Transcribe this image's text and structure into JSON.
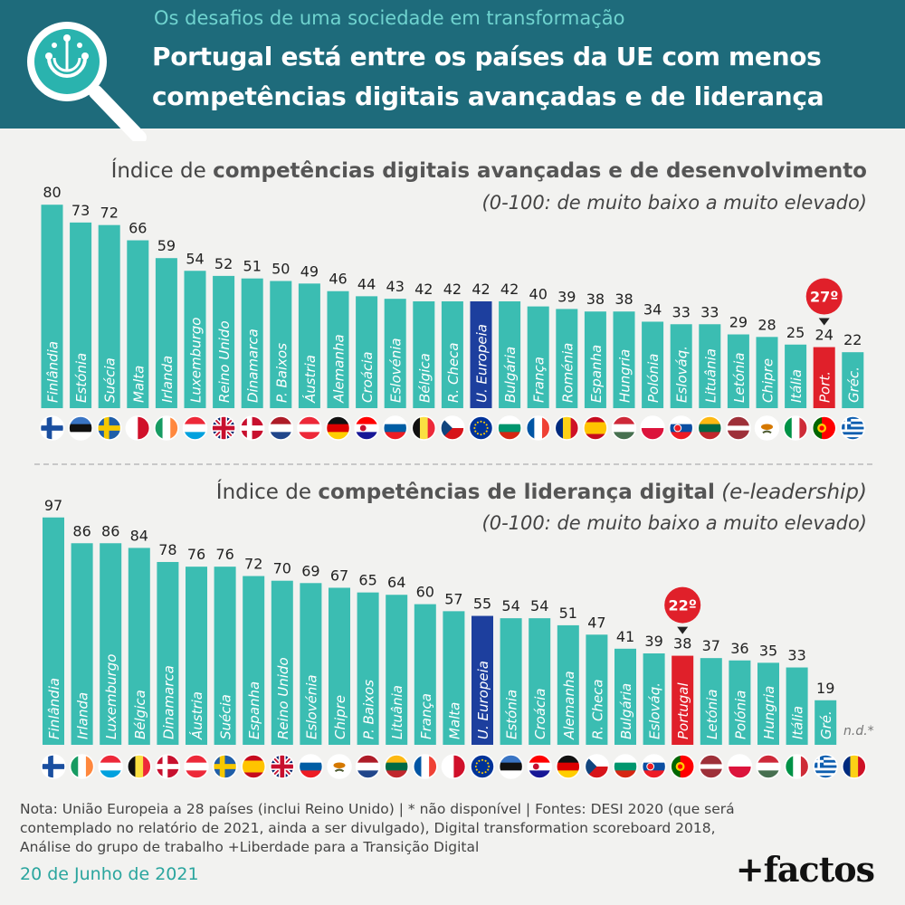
{
  "header": {
    "supertitle": "Os desafios de uma sociedade em transformação",
    "title_line1": "Portugal está entre os países da UE com menos",
    "title_line2": "competências digitais avançadas e de liderança",
    "icon": "magnifier-circuit-icon"
  },
  "colors": {
    "bar": "#3bbdb2",
    "eu_bar": "#1d3f9e",
    "portugal_bar": "#e0202a",
    "header_bg": "#1e6b7b",
    "accent": "#2aa59e"
  },
  "chart_data": [
    {
      "type": "bar",
      "title_plain": "Índice de ",
      "title_bold": "competências digitais avançadas e de desenvolvimento",
      "subtitle": "(0-100: de muito baixo a muito elevado)",
      "ylim": [
        0,
        100
      ],
      "categories": [
        "Finlândia",
        "Estónia",
        "Suécia",
        "Malta",
        "Irlanda",
        "Luxemburgo",
        "Reino Unido",
        "Dinamarca",
        "P. Baixos",
        "Áustria",
        "Alemanha",
        "Croácia",
        "Eslovénia",
        "Bélgica",
        "R. Checa",
        "U. Europeia",
        "Bulgária",
        "França",
        "Roménia",
        "Espanha",
        "Hungria",
        "Polónia",
        "Eslováq.",
        "Lituânia",
        "Letónia",
        "Chipre",
        "Itália",
        "Port.",
        "Gréc."
      ],
      "values": [
        80,
        73,
        72,
        66,
        59,
        54,
        52,
        51,
        50,
        49,
        46,
        44,
        43,
        42,
        42,
        42,
        42,
        40,
        39,
        38,
        38,
        34,
        33,
        33,
        29,
        28,
        25,
        24,
        22
      ],
      "flags": [
        "fi",
        "ee",
        "se",
        "mt",
        "ie",
        "lu",
        "gb",
        "dk",
        "nl",
        "at",
        "de",
        "hr",
        "si",
        "be",
        "cz",
        "eu",
        "bg",
        "fr",
        "ro",
        "es",
        "hu",
        "pl",
        "sk",
        "lt",
        "lv",
        "cy",
        "it",
        "pt",
        "gr"
      ],
      "highlight_eu": "U. Europeia",
      "highlight_pt": "Port.",
      "pt_rank": "27º"
    },
    {
      "type": "bar",
      "title_plain": "Índice de ",
      "title_bold": "competências de liderança digital",
      "title_italic": " (e-leadership)",
      "subtitle": "(0-100: de muito baixo a muito elevado)",
      "ylim": [
        0,
        100
      ],
      "categories": [
        "Finlândia",
        "Irlanda",
        "Luxemburgo",
        "Bélgica",
        "Dinamarca",
        "Áustria",
        "Suécia",
        "Espanha",
        "Reino Unido",
        "Eslovénia",
        "Chipre",
        "P. Baixos",
        "Lituânia",
        "França",
        "Malta",
        "U. Europeia",
        "Estónia",
        "Croácia",
        "Alemanha",
        "R. Checa",
        "Bulgária",
        "Eslováq.",
        "Portugal",
        "Letónia",
        "Polónia",
        "Hungria",
        "Itália",
        "Gré.",
        ""
      ],
      "values": [
        97,
        86,
        86,
        84,
        78,
        76,
        76,
        72,
        70,
        69,
        67,
        65,
        64,
        60,
        57,
        55,
        54,
        54,
        51,
        47,
        41,
        39,
        38,
        37,
        36,
        35,
        33,
        19,
        null
      ],
      "flags": [
        "fi",
        "ie",
        "lu",
        "be",
        "dk",
        "at",
        "se",
        "es",
        "gb",
        "si",
        "cy",
        "nl",
        "lt",
        "fr",
        "mt",
        "eu",
        "ee",
        "hr",
        "de",
        "cz",
        "bg",
        "sk",
        "pt",
        "lv",
        "pl",
        "hu",
        "it",
        "gr",
        "ro"
      ],
      "highlight_eu": "U. Europeia",
      "highlight_pt": "Portugal",
      "pt_rank": "22º",
      "not_available": "n.d.*"
    }
  ],
  "footer": {
    "note": "Nota: União Europeia a 28 países (inclui Reino Unido) | * não disponível | Fontes: DESI 2020 (que será contemplado no relatório de 2021, ainda a ser divulgado), Digital transformation scoreboard 2018, Análise do grupo de trabalho +Liberdade para a Transição Digital",
    "date": "20 de Junho de 2021",
    "brand": "+factos"
  }
}
